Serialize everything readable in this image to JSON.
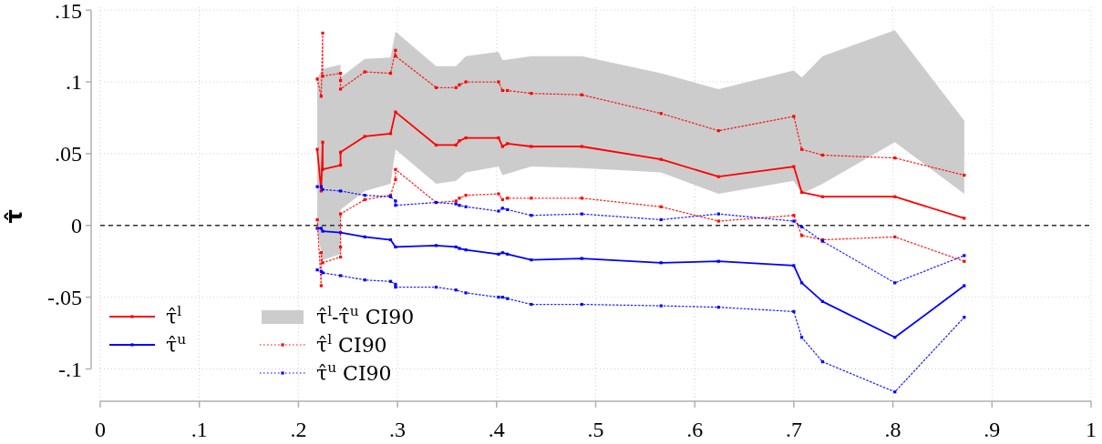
{
  "chart_data": {
    "type": "line",
    "ylabel": "τ̂",
    "xlim": [
      0,
      1
    ],
    "ylim": [
      -0.1225,
      0.152
    ],
    "xticks": [
      0,
      {
        "value": 0.1,
        "label": ".1"
      },
      {
        "value": 0.2,
        "label": ".2"
      },
      {
        "value": 0.3,
        "label": ".3"
      },
      {
        "value": 0.4,
        "label": ".4"
      },
      {
        "value": 0.5,
        "label": ".5"
      },
      {
        "value": 0.6,
        "label": ".6"
      },
      {
        "value": 0.7,
        "label": ".7"
      },
      {
        "value": 0.8,
        "label": ".8"
      },
      {
        "value": 0.9,
        "label": ".9"
      },
      1
    ],
    "yticks": [
      {
        "value": -0.1,
        "label": "-.1"
      },
      {
        "value": -0.05,
        "label": "-.05"
      },
      0,
      {
        "value": 0.05,
        "label": ".05"
      },
      {
        "value": 0.1,
        "label": ".1"
      },
      {
        "value": 0.15,
        "label": ".15"
      }
    ],
    "grid": true,
    "legend": "bottom left",
    "ref_lines": [
      {
        "axis": "y",
        "value": 0,
        "color": "#333333",
        "line_style": "dashed"
      }
    ],
    "series": [
      {
        "type": "area",
        "name": "τ̂$^{l}$-τ̂$^{u}$ CI90",
        "color": "#cccccc",
        "values": [
          null,
          null,
          null,
          null,
          null,
          null,
          null,
          null,
          null,
          null,
          null,
          null,
          null,
          null,
          null,
          null,
          null,
          null,
          null,
          null,
          null
        ],
        "x": [
          0.219,
          0.2245,
          0.2425,
          0.2425,
          0.267,
          0.293,
          0.298,
          0.339,
          0.359,
          0.369,
          0.402,
          0.406,
          0.435,
          0.486,
          0.566,
          0.624,
          0.7,
          0.708,
          0.729,
          0.802,
          0.872
        ],
        "upper": [
          0.103,
          0.109,
          0.112,
          0.103,
          0.116,
          0.117,
          0.135,
          0.111,
          0.111,
          0.118,
          0.121,
          0.115,
          0.118,
          0.118,
          0.106,
          0.095,
          0.108,
          0.103,
          0.118,
          0.136,
          0.073
        ],
        "lower": [
          -0.003,
          -0.024,
          -0.02,
          0.011,
          0.024,
          0.029,
          0.053,
          0.029,
          0.031,
          0.037,
          0.041,
          0.035,
          0.041,
          0.04,
          0.037,
          0.022,
          0.031,
          0.022,
          0.029,
          0.058,
          0.022
        ]
      },
      {
        "name": "τ̂$^{l}$",
        "color": "#ff0000",
        "line_style": "solid",
        "marker": "square",
        "x": [
          0.219,
          0.223,
          0.2245,
          0.2245,
          0.2425,
          0.2425,
          0.267,
          0.293,
          0.298,
          0.339,
          0.359,
          0.3625,
          0.369,
          0.402,
          0.406,
          0.411,
          0.435,
          0.486,
          0.566,
          0.624,
          0.7,
          0.708,
          0.729,
          0.802,
          0.872
        ],
        "values": [
          0.053,
          0.024,
          0.058,
          0.039,
          0.042,
          0.051,
          0.062,
          0.064,
          0.079,
          0.056,
          0.056,
          0.059,
          0.061,
          0.061,
          0.055,
          0.057,
          0.055,
          0.055,
          0.046,
          0.034,
          0.041,
          0.023,
          0.02,
          0.02,
          0.005
        ]
      },
      {
        "name": "τ̂$^{u}$",
        "color": "#0000ff",
        "line_style": "solid",
        "marker": "square",
        "x": [
          0.219,
          0.223,
          0.2245,
          0.2425,
          0.267,
          0.293,
          0.298,
          0.339,
          0.359,
          0.3625,
          0.369,
          0.402,
          0.406,
          0.411,
          0.435,
          0.486,
          0.566,
          0.624,
          0.7,
          0.708,
          0.729,
          0.802,
          0.872
        ],
        "values": [
          -0.002,
          -0.002,
          -0.004,
          -0.005,
          -0.008,
          -0.01,
          -0.015,
          -0.014,
          -0.015,
          -0.016,
          -0.017,
          -0.02,
          -0.019,
          -0.02,
          -0.024,
          -0.023,
          -0.026,
          -0.025,
          -0.028,
          -0.04,
          -0.053,
          -0.078,
          -0.042
        ]
      },
      {
        "name": "τ̂$^{l}$ CI90",
        "color": "#ff0000",
        "line_style": "dotted",
        "marker": "square",
        "x": [
          0.219,
          0.223,
          0.2245,
          0.2245,
          0.2425,
          0.2425,
          0.2425,
          0.267,
          0.293,
          0.298,
          0.298,
          0.339,
          0.359,
          0.3625,
          0.369,
          0.402,
          0.406,
          0.411,
          0.435,
          0.486,
          0.566,
          0.624,
          0.7,
          0.708,
          0.729,
          0.802,
          0.872
        ],
        "values": [
          0.102,
          0.09,
          0.134,
          0.104,
          0.106,
          0.101,
          0.095,
          0.107,
          0.106,
          0.122,
          0.118,
          0.096,
          0.096,
          0.098,
          0.1,
          0.1,
          0.094,
          0.094,
          0.092,
          0.091,
          0.078,
          0.066,
          0.076,
          0.053,
          0.049,
          0.047,
          0.035
        ]
      },
      {
        "color": "#ff0000",
        "line_style": "dotted",
        "marker": "square",
        "x": [
          0.219,
          0.223,
          0.223,
          0.2245,
          0.2425,
          0.2425,
          0.2425,
          0.267,
          0.293,
          0.298,
          0.298,
          0.339,
          0.359,
          0.3625,
          0.369,
          0.402,
          0.406,
          0.411,
          0.435,
          0.486,
          0.566,
          0.624,
          0.7,
          0.708,
          0.729,
          0.802,
          0.872
        ],
        "values": [
          0.004,
          -0.042,
          -0.019,
          -0.026,
          -0.022,
          -0.015,
          0.008,
          0.018,
          0.021,
          0.032,
          0.039,
          0.016,
          0.017,
          0.019,
          0.021,
          0.022,
          0.018,
          0.019,
          0.019,
          0.019,
          0.013,
          0.003,
          0.007,
          -0.007,
          -0.01,
          -0.008,
          -0.025
        ]
      },
      {
        "name": "τ̂$^{u}$ CI90",
        "color": "#0000ff",
        "line_style": "dotted",
        "marker": "square",
        "x": [
          0.219,
          0.223,
          0.2245,
          0.2425,
          0.267,
          0.293,
          0.298,
          0.298,
          0.339,
          0.359,
          0.3625,
          0.369,
          0.402,
          0.406,
          0.411,
          0.435,
          0.486,
          0.566,
          0.624,
          0.7,
          0.708,
          0.729,
          0.802,
          0.872
        ],
        "values": [
          0.027,
          0.027,
          0.025,
          0.024,
          0.021,
          0.02,
          0.017,
          0.014,
          0.016,
          0.015,
          0.014,
          0.013,
          0.01,
          0.012,
          0.011,
          0.007,
          0.008,
          0.004,
          0.008,
          0.003,
          -0.001,
          -0.011,
          -0.04,
          -0.021
        ]
      },
      {
        "color": "#0000ff",
        "line_style": "dotted",
        "marker": "square",
        "x": [
          0.219,
          0.223,
          0.2245,
          0.2425,
          0.267,
          0.293,
          0.298,
          0.298,
          0.339,
          0.359,
          0.369,
          0.402,
          0.406,
          0.411,
          0.435,
          0.486,
          0.566,
          0.624,
          0.7,
          0.708,
          0.729,
          0.802,
          0.872
        ],
        "values": [
          -0.031,
          -0.032,
          -0.033,
          -0.035,
          -0.038,
          -0.039,
          -0.041,
          -0.043,
          -0.043,
          -0.045,
          -0.047,
          -0.05,
          -0.05,
          -0.051,
          -0.055,
          -0.055,
          -0.056,
          -0.057,
          -0.06,
          -0.078,
          -0.095,
          -0.116,
          -0.064
        ]
      }
    ]
  }
}
